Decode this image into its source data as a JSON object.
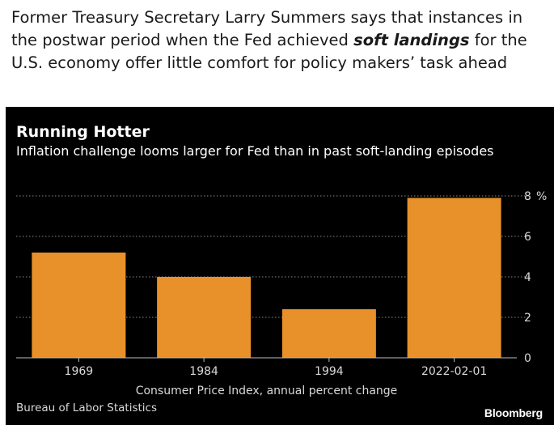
{
  "caption": {
    "before": "Former Treasury Secretary Larry Summers says that instances in the postwar period when the Fed achieved ",
    "emphasis": "soft landings",
    "after": " for the U.S. economy offer little comfort for policy makers’ task ahead"
  },
  "chart_data": {
    "type": "bar",
    "title": "Running Hotter",
    "subtitle": "Inflation challenge looms larger for Fed than in past soft-landing episodes",
    "categories": [
      "1969",
      "1984",
      "1994",
      "2022-02-01"
    ],
    "values": [
      5.2,
      4.0,
      2.4,
      7.9
    ],
    "xlabel": "Consumer Price Index, annual percent change",
    "ylabel": "",
    "ylim": [
      0,
      8
    ],
    "yticks": [
      0,
      2,
      4,
      6,
      8
    ],
    "yunit": "%",
    "grid": true,
    "bar_color": "#e8902a",
    "background": "#000000"
  },
  "footer": {
    "source": "Bureau of Labor Statistics",
    "brand": "Bloomberg"
  }
}
